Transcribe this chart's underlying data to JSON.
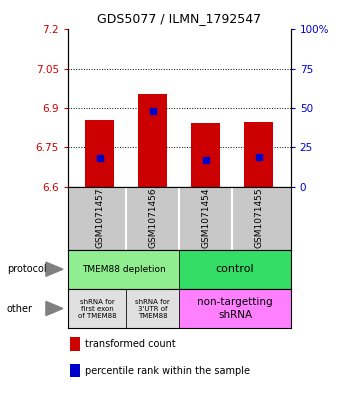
{
  "title": "GDS5077 / ILMN_1792547",
  "samples": [
    "GSM1071457",
    "GSM1071456",
    "GSM1071454",
    "GSM1071455"
  ],
  "bar_base": 6.6,
  "bar_tops": [
    6.855,
    6.952,
    6.843,
    6.848
  ],
  "percentile_values": [
    6.71,
    6.888,
    6.7,
    6.712
  ],
  "ylim": [
    6.6,
    7.2
  ],
  "yticks_left": [
    6.6,
    6.75,
    6.9,
    7.05,
    7.2
  ],
  "yticks_right_vals": [
    6.6,
    6.75,
    6.9,
    7.05,
    7.2
  ],
  "yticks_right_labels": [
    "0",
    "25",
    "50",
    "75",
    "100%"
  ],
  "hlines": [
    6.75,
    6.9,
    7.05
  ],
  "bar_color": "#CC0000",
  "blue_color": "#0000CC",
  "bar_width": 0.55,
  "legend_red": "transformed count",
  "legend_blue": "percentile rank within the sample",
  "left_label_color": "#CC0000",
  "right_label_color": "#0000CC",
  "prot_depletion_color": "#90EE90",
  "prot_control_color": "#33DD66",
  "other_gray_color": "#E0E0E0",
  "other_pink_color": "#FF80FF",
  "sample_bg_color": "#C8C8C8"
}
